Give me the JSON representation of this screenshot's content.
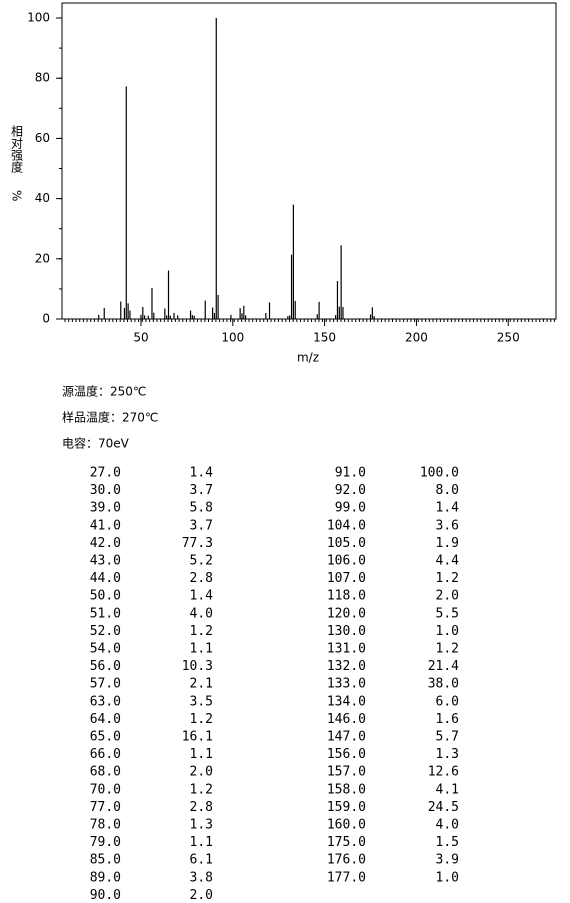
{
  "chart_data": {
    "type": "bar",
    "ylabel": "相对强度",
    "yunit": "%",
    "xlabel": "m/z",
    "x": [
      27,
      30,
      39,
      41,
      42,
      43,
      44,
      50,
      51,
      52,
      54,
      56,
      57,
      63,
      64,
      65,
      66,
      68,
      70,
      77,
      78,
      79,
      85,
      89,
      90,
      91,
      92,
      99,
      104,
      105,
      106,
      107,
      118,
      120,
      130,
      131,
      132,
      133,
      134,
      146,
      147,
      156,
      157,
      158,
      159,
      160,
      175,
      176,
      177
    ],
    "values": [
      1.4,
      3.7,
      5.8,
      3.7,
      77.3,
      5.2,
      2.8,
      1.4,
      4.0,
      1.2,
      1.1,
      10.3,
      2.1,
      3.5,
      1.2,
      16.1,
      1.1,
      2.0,
      1.2,
      2.8,
      1.3,
      1.1,
      6.1,
      3.8,
      2.0,
      100,
      8.0,
      1.4,
      3.6,
      1.9,
      4.4,
      1.2,
      2.0,
      5.5,
      1.0,
      1.2,
      21.4,
      38.0,
      6.0,
      1.6,
      5.7,
      1.3,
      12.6,
      4.1,
      24.5,
      4.0,
      1.5,
      3.9,
      1.0
    ],
    "color": "#000000",
    "xlim": [
      7,
      276
    ],
    "xticks": [
      50,
      100,
      150,
      200,
      250
    ],
    "ylim": [
      0,
      105
    ],
    "yticks": [
      0,
      20,
      40,
      60,
      80,
      100
    ]
  },
  "conditions": [
    "源温度：250℃",
    "样品温度：270℃",
    "电容：70eV"
  ],
  "table": {
    "left": [
      [
        "27.0",
        "1.4"
      ],
      [
        "30.0",
        "3.7"
      ],
      [
        "39.0",
        "5.8"
      ],
      [
        "41.0",
        "3.7"
      ],
      [
        "42.0",
        "77.3"
      ],
      [
        "43.0",
        "5.2"
      ],
      [
        "44.0",
        "2.8"
      ],
      [
        "50.0",
        "1.4"
      ],
      [
        "51.0",
        "4.0"
      ],
      [
        "52.0",
        "1.2"
      ],
      [
        "54.0",
        "1.1"
      ],
      [
        "56.0",
        "10.3"
      ],
      [
        "57.0",
        "2.1"
      ],
      [
        "63.0",
        "3.5"
      ],
      [
        "64.0",
        "1.2"
      ],
      [
        "65.0",
        "16.1"
      ],
      [
        "66.0",
        "1.1"
      ],
      [
        "68.0",
        "2.0"
      ],
      [
        "70.0",
        "1.2"
      ],
      [
        "77.0",
        "2.8"
      ],
      [
        "78.0",
        "1.3"
      ],
      [
        "79.0",
        "1.1"
      ],
      [
        "85.0",
        "6.1"
      ],
      [
        "89.0",
        "3.8"
      ],
      [
        "90.0",
        "2.0"
      ]
    ],
    "right": [
      [
        "91.0",
        "100.0"
      ],
      [
        "92.0",
        "8.0"
      ],
      [
        "99.0",
        "1.4"
      ],
      [
        "104.0",
        "3.6"
      ],
      [
        "105.0",
        "1.9"
      ],
      [
        "106.0",
        "4.4"
      ],
      [
        "107.0",
        "1.2"
      ],
      [
        "118.0",
        "2.0"
      ],
      [
        "120.0",
        "5.5"
      ],
      [
        "130.0",
        "1.0"
      ],
      [
        "131.0",
        "1.2"
      ],
      [
        "132.0",
        "21.4"
      ],
      [
        "133.0",
        "38.0"
      ],
      [
        "134.0",
        "6.0"
      ],
      [
        "146.0",
        "1.6"
      ],
      [
        "147.0",
        "5.7"
      ],
      [
        "156.0",
        "1.3"
      ],
      [
        "157.0",
        "12.6"
      ],
      [
        "158.0",
        "4.1"
      ],
      [
        "159.0",
        "24.5"
      ],
      [
        "160.0",
        "4.0"
      ],
      [
        "175.0",
        "1.5"
      ],
      [
        "176.0",
        "3.9"
      ],
      [
        "177.0",
        "1.0"
      ]
    ]
  }
}
